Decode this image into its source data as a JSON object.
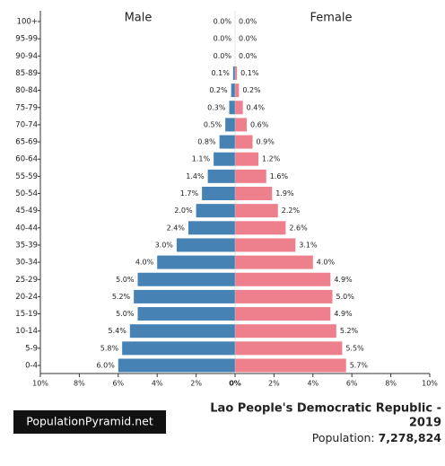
{
  "chart_data": {
    "type": "pyramid",
    "categories": [
      "100+",
      "95-99",
      "90-94",
      "85-89",
      "80-84",
      "75-79",
      "70-74",
      "65-69",
      "60-64",
      "55-59",
      "50-54",
      "45-49",
      "40-44",
      "35-39",
      "30-34",
      "25-29",
      "20-24",
      "15-19",
      "10-14",
      "5-9",
      "0-4"
    ],
    "series": [
      {
        "name": "Male",
        "color": "#4682b4",
        "values": [
          0.0,
          0.0,
          0.0,
          0.1,
          0.2,
          0.3,
          0.5,
          0.8,
          1.1,
          1.4,
          1.7,
          2.0,
          2.4,
          3.0,
          4.0,
          5.0,
          5.2,
          5.0,
          5.4,
          5.8,
          6.0
        ],
        "value_labels": [
          "0.0%",
          "0.0%",
          "0.0%",
          "0.1%",
          "0.2%",
          "0.3%",
          "0.5%",
          "0.8%",
          "1.1%",
          "1.4%",
          "1.7%",
          "2.0%",
          "2.4%",
          "3.0%",
          "4.0%",
          "5.0%",
          "5.2%",
          "5.0%",
          "5.4%",
          "5.8%",
          "6.0%"
        ]
      },
      {
        "name": "Female",
        "color": "#ee7f8d",
        "values": [
          0.0,
          0.0,
          0.0,
          0.1,
          0.2,
          0.4,
          0.6,
          0.9,
          1.2,
          1.6,
          1.9,
          2.2,
          2.6,
          3.1,
          4.0,
          4.9,
          5.0,
          4.9,
          5.2,
          5.5,
          5.7
        ],
        "value_labels": [
          "0.0%",
          "0.0%",
          "0.0%",
          "0.1%",
          "0.2%",
          "0.4%",
          "0.6%",
          "0.9%",
          "1.2%",
          "1.6%",
          "1.9%",
          "2.2%",
          "2.6%",
          "3.1%",
          "4.0%",
          "4.9%",
          "5.0%",
          "4.9%",
          "5.2%",
          "5.5%",
          "5.7%"
        ]
      }
    ],
    "xlim": [
      -10,
      10
    ],
    "xticks": [
      {
        "value": -10,
        "label": "10%"
      },
      {
        "value": -8,
        "label": "8%"
      },
      {
        "value": -6,
        "label": "6%"
      },
      {
        "value": -4,
        "label": "4%"
      },
      {
        "value": -2,
        "label": "2%"
      },
      {
        "value": 0,
        "label": "0%"
      },
      {
        "value": 2,
        "label": "2%"
      },
      {
        "value": 4,
        "label": "4%"
      },
      {
        "value": 6,
        "label": "6%"
      },
      {
        "value": 8,
        "label": "8%"
      },
      {
        "value": 10,
        "label": "10%"
      }
    ],
    "source": "PopulationPyramid.net",
    "title_lines": [
      "Lao People's Democratic Republic -",
      "2019"
    ],
    "population_label": "Population:",
    "population_value": "7,278,824"
  }
}
